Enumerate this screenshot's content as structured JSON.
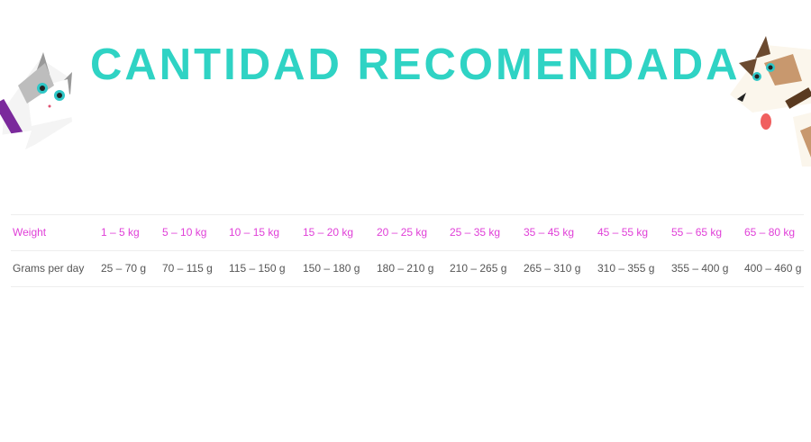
{
  "title": "CANTIDAD RECOMENDADA",
  "colors": {
    "title": "#2fd3c4",
    "weight_row": "#e040d8",
    "grams_row": "#555555"
  },
  "table": {
    "rows": [
      {
        "label": "Weight",
        "values": [
          "1 – 5 kg",
          "5 – 10 kg",
          "10 – 15 kg",
          "15 – 20 kg",
          "20 – 25 kg",
          "25 – 35 kg",
          "35 – 45 kg",
          "45 – 55 kg",
          "55 – 65 kg",
          "65 – 80 kg"
        ]
      },
      {
        "label": "Grams per day",
        "values": [
          "25 – 70 g",
          "70 – 115 g",
          "115 – 150 g",
          "150 – 180 g",
          "180 – 210 g",
          "210 – 265 g",
          "265 – 310 g",
          "310 – 355 g",
          "355 – 400 g",
          "400 – 460 g"
        ]
      }
    ]
  },
  "illustrations": [
    "cat-illustration",
    "dog-illustration"
  ]
}
